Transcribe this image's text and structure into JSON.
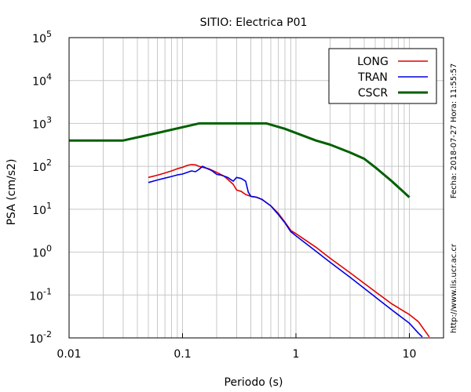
{
  "chart_data": {
    "type": "line",
    "title": "SITIO: Electrica P01",
    "xlabel": "Periodo (s)",
    "ylabel": "PSA (cm/s2)",
    "x_scale": "log",
    "y_scale": "log",
    "xlim": [
      0.01,
      20
    ],
    "ylim": [
      0.01,
      100000
    ],
    "x_ticks": [
      {
        "value": 0.01,
        "label": "0.01"
      },
      {
        "value": 0.1,
        "label": "0.1"
      },
      {
        "value": 1,
        "label": "1"
      },
      {
        "value": 10,
        "label": "10"
      }
    ],
    "y_ticks": [
      {
        "value": 0.01,
        "base": "10",
        "exp": "-2"
      },
      {
        "value": 0.1,
        "base": "10",
        "exp": "-1"
      },
      {
        "value": 1,
        "base": "10",
        "exp": "0"
      },
      {
        "value": 10,
        "base": "10",
        "exp": "1"
      },
      {
        "value": 100,
        "base": "10",
        "exp": "2"
      },
      {
        "value": 1000,
        "base": "10",
        "exp": "3"
      },
      {
        "value": 10000,
        "base": "10",
        "exp": "4"
      },
      {
        "value": 100000,
        "base": "10",
        "exp": "5"
      }
    ],
    "grid": true,
    "legend_position": "top-right",
    "series": [
      {
        "name": "LONG",
        "color": "#e00000",
        "points": [
          [
            0.05,
            55
          ],
          [
            0.06,
            62
          ],
          [
            0.07,
            70
          ],
          [
            0.08,
            78
          ],
          [
            0.09,
            88
          ],
          [
            0.1,
            95
          ],
          [
            0.11,
            105
          ],
          [
            0.12,
            110
          ],
          [
            0.13,
            108
          ],
          [
            0.14,
            100
          ],
          [
            0.15,
            95
          ],
          [
            0.17,
            88
          ],
          [
            0.2,
            72
          ],
          [
            0.23,
            60
          ],
          [
            0.25,
            50
          ],
          [
            0.28,
            38
          ],
          [
            0.3,
            28
          ],
          [
            0.33,
            26
          ],
          [
            0.36,
            22
          ],
          [
            0.4,
            20
          ],
          [
            0.45,
            19
          ],
          [
            0.5,
            17
          ],
          [
            0.6,
            12
          ],
          [
            0.7,
            8
          ],
          [
            0.8,
            5
          ],
          [
            0.9,
            3.2
          ],
          [
            1.0,
            2.7
          ],
          [
            1.5,
            1.3
          ],
          [
            2,
            0.72
          ],
          [
            3,
            0.33
          ],
          [
            5,
            0.12
          ],
          [
            7,
            0.062
          ],
          [
            10,
            0.035
          ],
          [
            12,
            0.024
          ],
          [
            15,
            0.0105
          ]
        ]
      },
      {
        "name": "TRAN",
        "color": "#0000e0",
        "points": [
          [
            0.05,
            42
          ],
          [
            0.06,
            48
          ],
          [
            0.07,
            53
          ],
          [
            0.08,
            58
          ],
          [
            0.09,
            63
          ],
          [
            0.1,
            66
          ],
          [
            0.11,
            72
          ],
          [
            0.12,
            78
          ],
          [
            0.13,
            75
          ],
          [
            0.14,
            85
          ],
          [
            0.15,
            100
          ],
          [
            0.16,
            92
          ],
          [
            0.18,
            80
          ],
          [
            0.2,
            65
          ],
          [
            0.22,
            62
          ],
          [
            0.25,
            55
          ],
          [
            0.27,
            48
          ],
          [
            0.28,
            45
          ],
          [
            0.3,
            55
          ],
          [
            0.33,
            52
          ],
          [
            0.36,
            45
          ],
          [
            0.38,
            25
          ],
          [
            0.4,
            20
          ],
          [
            0.45,
            19
          ],
          [
            0.5,
            17
          ],
          [
            0.6,
            12
          ],
          [
            0.7,
            7.5
          ],
          [
            0.8,
            4.8
          ],
          [
            0.9,
            3.0
          ],
          [
            1.0,
            2.4
          ],
          [
            1.5,
            1.05
          ],
          [
            2,
            0.58
          ],
          [
            3,
            0.26
          ],
          [
            5,
            0.09
          ],
          [
            7,
            0.045
          ],
          [
            10,
            0.022
          ],
          [
            12,
            0.013
          ],
          [
            13,
            0.0105
          ]
        ]
      },
      {
        "name": "CSCR",
        "color": "#006000",
        "points": [
          [
            0.01,
            400
          ],
          [
            0.03,
            400
          ],
          [
            0.06,
            600
          ],
          [
            0.14,
            1000
          ],
          [
            0.55,
            1000
          ],
          [
            0.8,
            750
          ],
          [
            1.5,
            400
          ],
          [
            2,
            320
          ],
          [
            3,
            210
          ],
          [
            4,
            150
          ],
          [
            5,
            95
          ],
          [
            7,
            45
          ],
          [
            10,
            19
          ]
        ]
      }
    ]
  },
  "side_notes": {
    "datetime": "Fecha: 2018-07-27 Hora: 11:55:57",
    "url": "http://www.lis.ucr.ac.cr"
  }
}
